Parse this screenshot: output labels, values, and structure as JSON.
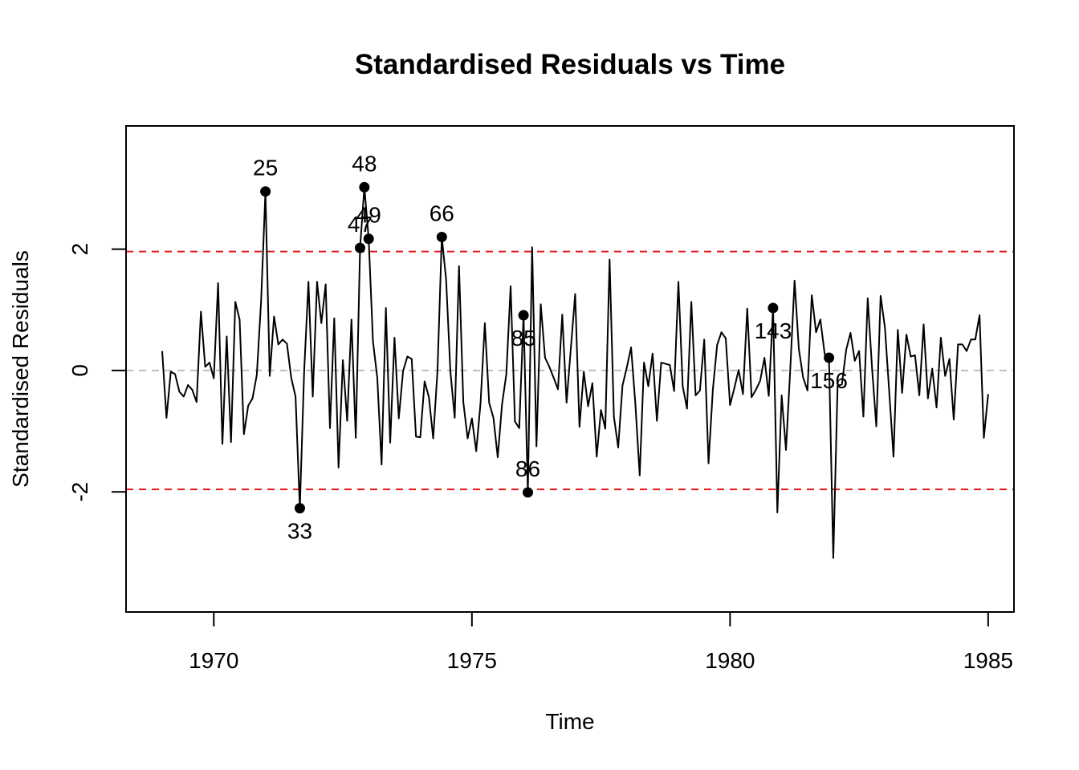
{
  "chart_data": {
    "type": "line",
    "title": "Standardised Residuals vs Time",
    "xlabel": "Time",
    "ylabel": "Standardised Residuals",
    "xlim": [
      1968.3,
      1985.5
    ],
    "ylim": [
      -3.98,
      4.03
    ],
    "x_ticks": [
      1970,
      1975,
      1980,
      1985
    ],
    "y_ticks": [
      -2,
      0,
      2
    ],
    "x_start": 1969.0,
    "x_step_months": 1,
    "series": [
      {
        "line_color": "#000000",
        "values": [
          0.32,
          -0.78,
          -0.02,
          -0.06,
          -0.35,
          -0.43,
          -0.24,
          -0.32,
          -0.52,
          0.97,
          0.06,
          0.13,
          -0.13,
          1.44,
          -1.21,
          0.56,
          -1.18,
          1.13,
          0.84,
          -1.05,
          -0.58,
          -0.46,
          -0.07,
          1.15,
          2.95,
          -0.09,
          0.89,
          0.43,
          0.51,
          0.44,
          -0.12,
          -0.43,
          -2.27,
          -0.02,
          1.46,
          -0.43,
          1.46,
          0.78,
          1.42,
          -0.95,
          0.86,
          -1.6,
          0.17,
          -0.83,
          0.84,
          -1.11,
          2.02,
          3.02,
          2.17,
          0.48,
          -0.12,
          -1.55,
          1.03,
          -1.19,
          0.54,
          -0.79,
          -0.01,
          0.23,
          0.19,
          -1.09,
          -1.1,
          -0.18,
          -0.44,
          -1.12,
          0.0,
          2.2,
          1.5,
          -0.02,
          -0.78,
          1.72,
          -0.52,
          -1.12,
          -0.79,
          -1.33,
          -0.54,
          0.78,
          -0.53,
          -0.78,
          -1.43,
          -0.56,
          -0.06,
          1.39,
          -0.84,
          -0.95,
          0.91,
          -2.01,
          2.03,
          -1.25,
          1.09,
          0.21,
          0.06,
          -0.12,
          -0.31,
          0.92,
          -0.53,
          0.37,
          1.26,
          -0.93,
          -0.02,
          -0.59,
          -0.21,
          -1.42,
          -0.65,
          -0.96,
          1.83,
          -0.76,
          -1.27,
          -0.25,
          0.05,
          0.38,
          -0.56,
          -1.73,
          0.13,
          -0.26,
          0.28,
          -0.83,
          0.13,
          0.11,
          0.09,
          -0.34,
          1.46,
          -0.26,
          -0.63,
          1.13,
          -0.41,
          -0.33,
          0.51,
          -1.53,
          -0.32,
          0.42,
          0.63,
          0.53,
          -0.57,
          -0.29,
          0.01,
          -0.39,
          1.02,
          -0.44,
          -0.32,
          -0.17,
          0.21,
          -0.42,
          1.03,
          -2.34,
          -0.41,
          -1.31,
          0.02,
          1.48,
          0.35,
          -0.12,
          -0.33,
          1.24,
          0.63,
          0.84,
          0.27,
          0.21,
          -3.09,
          -0.25,
          -0.23,
          0.34,
          0.62,
          0.16,
          0.32,
          -0.76,
          1.19,
          0.05,
          -0.92,
          1.23,
          0.71,
          -0.35,
          -1.42,
          0.67,
          -0.37,
          0.59,
          0.23,
          0.25,
          -0.41,
          0.76,
          -0.46,
          0.03,
          -0.61,
          0.54,
          -0.09,
          0.19,
          -0.81,
          0.43,
          0.43,
          0.32,
          0.51,
          0.51,
          0.91,
          -1.11,
          -0.39
        ]
      }
    ],
    "reference_lines": [
      {
        "y": 1.96,
        "color": "#e41a1c",
        "style": "dashed"
      },
      {
        "y": -1.96,
        "color": "#e41a1c",
        "style": "dashed"
      },
      {
        "y": 0,
        "color": "#bebebe",
        "style": "dashed"
      }
    ],
    "highlighted_points": [
      {
        "index": 25,
        "label": "25",
        "label_position": "above"
      },
      {
        "index": 33,
        "label": "33",
        "label_position": "below"
      },
      {
        "index": 47,
        "label": "47",
        "label_position": "above"
      },
      {
        "index": 48,
        "label": "48",
        "label_position": "above"
      },
      {
        "index": 49,
        "label": "49",
        "label_position": "above"
      },
      {
        "index": 66,
        "label": "66",
        "label_position": "above"
      },
      {
        "index": 85,
        "label": "85",
        "label_position": "below"
      },
      {
        "index": 86,
        "label": "86",
        "label_position": "above"
      },
      {
        "index": 143,
        "label": "143",
        "label_position": "below"
      },
      {
        "index": 156,
        "label": "156",
        "label_position": "below"
      }
    ],
    "grid": false,
    "legend": "none"
  }
}
